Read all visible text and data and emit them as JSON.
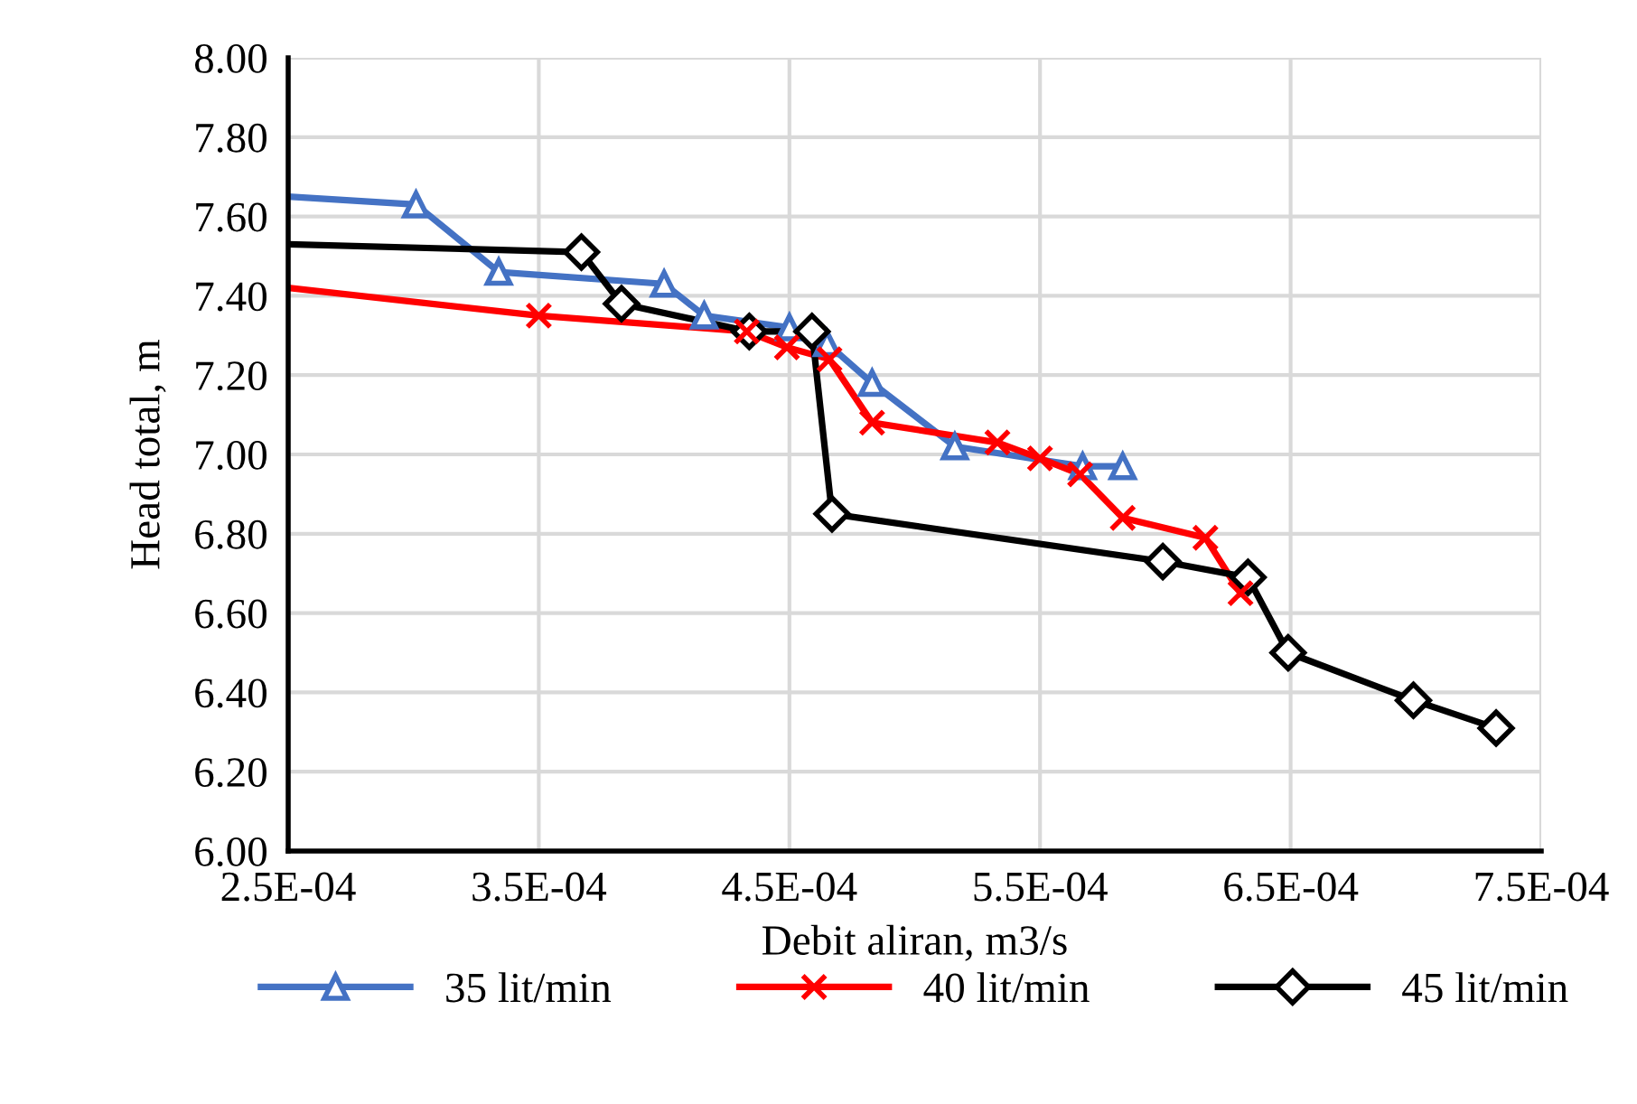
{
  "chart_data": {
    "type": "line",
    "xlabel": "Debit aliran, m3/s",
    "ylabel": "Head total, m",
    "xlim": [
      0.00025,
      0.00075
    ],
    "xticks": [
      {
        "value": 0.00025,
        "label": "2.5E-04"
      },
      {
        "value": 0.00035,
        "label": "3.5E-04"
      },
      {
        "value": 0.00045,
        "label": "4.5E-04"
      },
      {
        "value": 0.00055,
        "label": "5.5E-04"
      },
      {
        "value": 0.00065,
        "label": "6.5E-04"
      },
      {
        "value": 0.00075,
        "label": "7.5E-04"
      }
    ],
    "ylim": [
      6.0,
      8.0
    ],
    "yticks": [
      {
        "value": 6.0,
        "label": "6.00"
      },
      {
        "value": 6.2,
        "label": "6.20"
      },
      {
        "value": 6.4,
        "label": "6.40"
      },
      {
        "value": 6.6,
        "label": "6.60"
      },
      {
        "value": 6.8,
        "label": "6.80"
      },
      {
        "value": 7.0,
        "label": "7.00"
      },
      {
        "value": 7.2,
        "label": "7.20"
      },
      {
        "value": 7.4,
        "label": "7.40"
      },
      {
        "value": 7.6,
        "label": "7.60"
      },
      {
        "value": 7.8,
        "label": "7.80"
      },
      {
        "value": 8.0,
        "label": "8.00"
      }
    ],
    "grid": true,
    "legend": "bottom",
    "series": [
      {
        "name": "35 lit/min",
        "color": "#4472c4",
        "marker": "triangle",
        "x": [
          0.00025,
          0.000301,
          0.000334,
          0.0004,
          0.000416,
          0.00045,
          0.000465,
          0.000483,
          0.000516,
          0.000567,
          0.000583
        ],
        "values": [
          7.65,
          7.63,
          7.46,
          7.43,
          7.35,
          7.32,
          7.28,
          7.18,
          7.02,
          6.97,
          6.97
        ]
      },
      {
        "name": "40 lit/min",
        "color": "#ff0000",
        "marker": "cross",
        "x": [
          0.00025,
          0.00035,
          0.000433,
          0.000449,
          0.000466,
          0.000483,
          0.000533,
          0.00055,
          0.000566,
          0.000583,
          0.000616,
          0.00063
        ],
        "values": [
          7.42,
          7.35,
          7.31,
          7.27,
          7.24,
          7.08,
          7.03,
          6.99,
          6.95,
          6.84,
          6.79,
          6.65
        ]
      },
      {
        "name": "45 lit/min",
        "color": "#000000",
        "marker": "diamond",
        "x": [
          0.00025,
          0.000367,
          0.000383,
          0.000434,
          0.000459,
          0.000467,
          0.000599,
          0.000633,
          0.000649,
          0.000699,
          0.000732
        ],
        "values": [
          7.53,
          7.51,
          7.38,
          7.31,
          7.31,
          6.85,
          6.73,
          6.69,
          6.5,
          6.38,
          6.31
        ]
      }
    ]
  }
}
